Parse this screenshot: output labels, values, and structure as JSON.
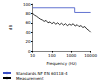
{
  "chart_data": {
    "type": "line",
    "x_label": "Frequency (Hz)",
    "y_label": "dB",
    "log": "x",
    "grid": false,
    "legend": "bottom-left",
    "xlim": [
      10,
      10000
    ],
    "xticks": [
      10,
      100,
      1000,
      10000
    ],
    "ylim": [
      0,
      100
    ],
    "yticks": [
      0,
      20,
      40,
      60,
      80,
      100
    ],
    "series": [
      {
        "name": "Standards NF EN 60118-4",
        "color": "#3a4fc4",
        "x": [
          10,
          1500,
          1500,
          10000
        ],
        "values": [
          92,
          92,
          82,
          82
        ]
      },
      {
        "name": "Measurement",
        "color": "#000000",
        "x": [
          10,
          13,
          16,
          20,
          25,
          32,
          40,
          50,
          63,
          80,
          100,
          125,
          160,
          200,
          250,
          315,
          400,
          500,
          630,
          800,
          1000,
          1250,
          1600,
          2000,
          2500,
          3150,
          4000,
          5000,
          6300,
          8000,
          10000
        ],
        "values": [
          80,
          76,
          74,
          71,
          68,
          66,
          63,
          65,
          60,
          62,
          58,
          61,
          57,
          60,
          56,
          59,
          55,
          58,
          54,
          57,
          55,
          58,
          53,
          56,
          52,
          54,
          50,
          52,
          47,
          44,
          40
        ]
      }
    ]
  }
}
